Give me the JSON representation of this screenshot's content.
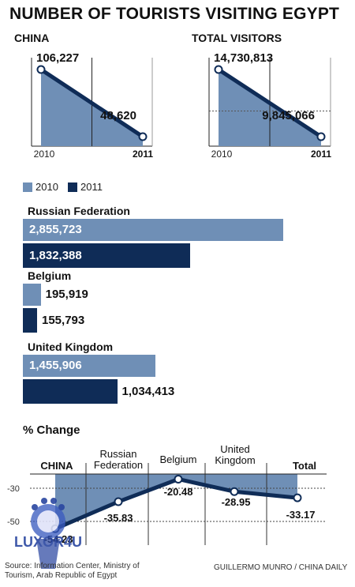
{
  "title": "NUMBER OF TOURISTS VISITING EGYPT",
  "colors": {
    "y2010": "#6f8fb6",
    "y2011": "#0f2c57",
    "line": "#0f2c57"
  },
  "legend": [
    "2010",
    "2011"
  ],
  "chart_data": [
    {
      "type": "area",
      "title": "CHINA",
      "x": [
        "2010",
        "2011"
      ],
      "values": [
        106227,
        48620
      ],
      "labels": [
        "106,227",
        "48,620"
      ]
    },
    {
      "type": "area",
      "title": "TOTAL VISITORS",
      "x": [
        "2010",
        "2011"
      ],
      "values": [
        14730813,
        9845066
      ],
      "labels": [
        "14,730,813",
        "9,845,066"
      ]
    },
    {
      "type": "bar",
      "categories": [
        "Russian Federation",
        "Belgium",
        "United Kingdom"
      ],
      "series": [
        {
          "name": "2010",
          "values": [
            2855723,
            195919,
            1455906
          ],
          "labels": [
            "2,855,723",
            "195,919",
            "1,455,906"
          ]
        },
        {
          "name": "2011",
          "values": [
            1832388,
            155793,
            1034413
          ],
          "labels": [
            "1,832,388",
            "155,793",
            "1,034,413"
          ]
        }
      ]
    },
    {
      "type": "line",
      "title": "% Change",
      "categories": [
        "CHINA",
        "Russian Federation",
        "Belgium",
        "United Kingdom",
        "Total"
      ],
      "values": [
        -54.23,
        -35.83,
        -20.48,
        -28.95,
        -33.17
      ],
      "labels": [
        "-54.23",
        "-35.83",
        "-20.48",
        "-28.95",
        "-33.17"
      ],
      "yticks": [
        "-30",
        "-50"
      ],
      "ylim": [
        -60,
        -17
      ]
    }
  ],
  "source": "Source: Information Center, Ministry of Tourism, Arab Republic of Egypt",
  "credit": "GUILLERMO MUNRO / CHINA DAILY",
  "watermark": "LUXOR4U"
}
